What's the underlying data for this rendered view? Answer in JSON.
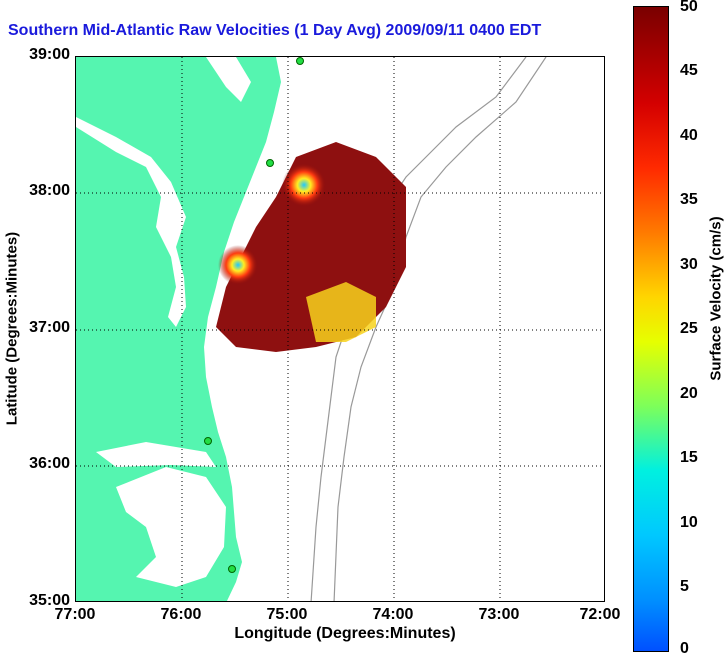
{
  "title": "Southern Mid-Atlantic Raw Velocities (1 Day Avg) 2009/09/11 0400 EDT",
  "axes": {
    "xlabel": "Longitude (Degrees:Minutes)",
    "ylabel": "Latitude (Degrees:Minutes)",
    "xticks": [
      "77:00",
      "76:00",
      "75:00",
      "74:00",
      "73:00",
      "72:00"
    ],
    "yticks": [
      "39:00",
      "38:00",
      "37:00",
      "36:00",
      "35:00"
    ]
  },
  "colorbar": {
    "label": "Surface Velocity (cm/s)",
    "ticks": [
      "50",
      "45",
      "40",
      "35",
      "30",
      "25",
      "20",
      "15",
      "10",
      "5",
      "0"
    ],
    "range": [
      0,
      50
    ]
  },
  "colors": {
    "land": "#55f5b0",
    "title": "#1a1adc",
    "bathymetry": "#999999"
  }
}
